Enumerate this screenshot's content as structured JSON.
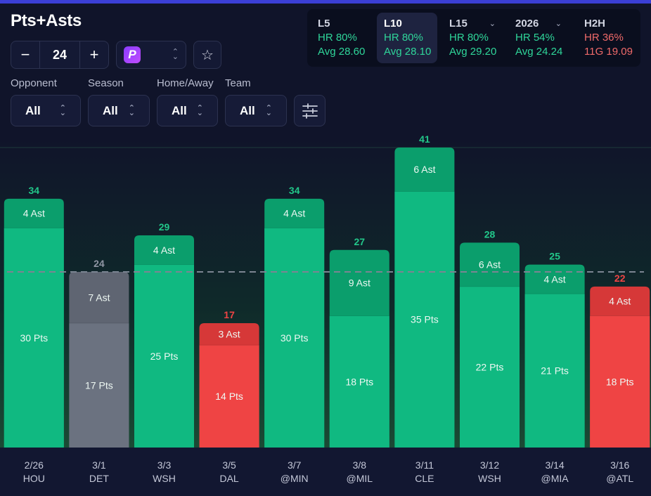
{
  "header": {
    "title": "Pts+Asts"
  },
  "stepper": {
    "value": "24",
    "minus_label": "−",
    "plus_label": "+"
  },
  "sportsbook": {
    "logo_letter": "P",
    "icon": "prizepicks-logo"
  },
  "favorite": {
    "icon": "star-icon"
  },
  "filters": [
    {
      "label": "Opponent",
      "value": "All"
    },
    {
      "label": "Season",
      "value": "All"
    },
    {
      "label": "Home/Away",
      "value": "All"
    },
    {
      "label": "Team",
      "value": "All"
    }
  ],
  "filter_settings": {
    "icon": "sliders-icon"
  },
  "stats": [
    {
      "label": "L5",
      "hr": "HR 80%",
      "avg": "Avg 28.60",
      "tone": "green",
      "dropdown": false,
      "active": false
    },
    {
      "label": "L10",
      "hr": "HR 80%",
      "avg": "Avg 28.10",
      "tone": "green",
      "dropdown": false,
      "active": true
    },
    {
      "label": "L15",
      "hr": "HR 80%",
      "avg": "Avg 29.20",
      "tone": "green",
      "dropdown": true,
      "active": false
    },
    {
      "label": "2026",
      "hr": "HR 54%",
      "avg": "Avg 24.24",
      "tone": "green",
      "dropdown": true,
      "active": false
    },
    {
      "label": "H2H",
      "hr": "HR 36%",
      "avg": "11G 19.09",
      "tone": "red",
      "dropdown": false,
      "active": false
    }
  ],
  "colors": {
    "over": "#10b981",
    "over_top": "#0b9e6c",
    "under": "#ef4444",
    "under_top": "#d63838",
    "push": "#6b7280",
    "push_top": "#5f6572",
    "over_text": "#22c78a",
    "under_text": "#ef4444",
    "push_text": "#8f95a3"
  },
  "chart_data": {
    "type": "bar",
    "stacked": true,
    "line": 24,
    "ylim": [
      0,
      41
    ],
    "grid": false,
    "categories": [
      {
        "date": "2/26",
        "opp": "HOU"
      },
      {
        "date": "3/1",
        "opp": "DET"
      },
      {
        "date": "3/3",
        "opp": "WSH"
      },
      {
        "date": "3/5",
        "opp": "DAL"
      },
      {
        "date": "3/7",
        "opp": "@MIN"
      },
      {
        "date": "3/8",
        "opp": "@MIL"
      },
      {
        "date": "3/11",
        "opp": "CLE"
      },
      {
        "date": "3/12",
        "opp": "WSH"
      },
      {
        "date": "3/14",
        "opp": "@MIA"
      },
      {
        "date": "3/16",
        "opp": "@ATL"
      }
    ],
    "totals": [
      34,
      24,
      29,
      17,
      34,
      27,
      41,
      28,
      25,
      22
    ],
    "series": [
      {
        "name": "Pts",
        "values": [
          30,
          17,
          25,
          14,
          30,
          18,
          35,
          22,
          21,
          18
        ],
        "labels": [
          "30 Pts",
          "17 Pts",
          "25 Pts",
          "14 Pts",
          "30 Pts",
          "18 Pts",
          "35 Pts",
          "22 Pts",
          "21 Pts",
          "18 Pts"
        ]
      },
      {
        "name": "Ast",
        "values": [
          4,
          7,
          4,
          3,
          4,
          9,
          6,
          6,
          4,
          4
        ],
        "labels": [
          "4 Ast",
          "7 Ast",
          "4 Ast",
          "3 Ast",
          "4 Ast",
          "9 Ast",
          "6 Ast",
          "6 Ast",
          "4 Ast",
          "4 Ast"
        ]
      }
    ],
    "result": [
      "over",
      "push",
      "over",
      "under",
      "over",
      "over",
      "over",
      "over",
      "over",
      "under"
    ]
  }
}
